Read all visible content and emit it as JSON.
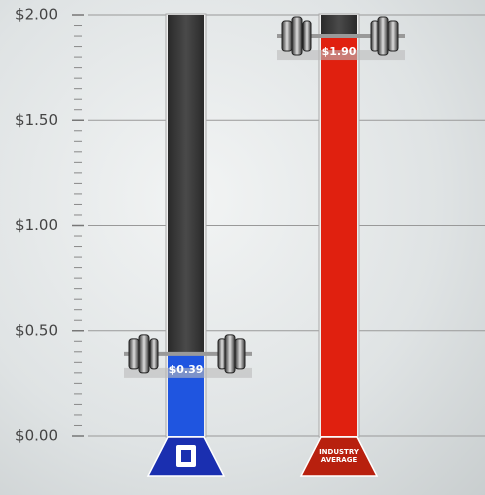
{
  "chart_data": {
    "type": "bar",
    "categories": [
      null,
      "INDUSTRY AVERAGE"
    ],
    "values": [
      0.39,
      1.9
    ],
    "value_labels": [
      "$0.39",
      "$1.90"
    ],
    "colors": [
      "#1f55e0",
      "#e0200f"
    ],
    "ylim": [
      0,
      2
    ],
    "yticks": [
      {
        "value": 0,
        "label": "$0.00"
      },
      {
        "value": 0.5,
        "label": "$0.50"
      },
      {
        "value": 1,
        "label": "$1.00"
      },
      {
        "value": 1.5,
        "label": "$1.50"
      },
      {
        "value": 2,
        "label": "$2.00"
      }
    ],
    "grid": true
  }
}
